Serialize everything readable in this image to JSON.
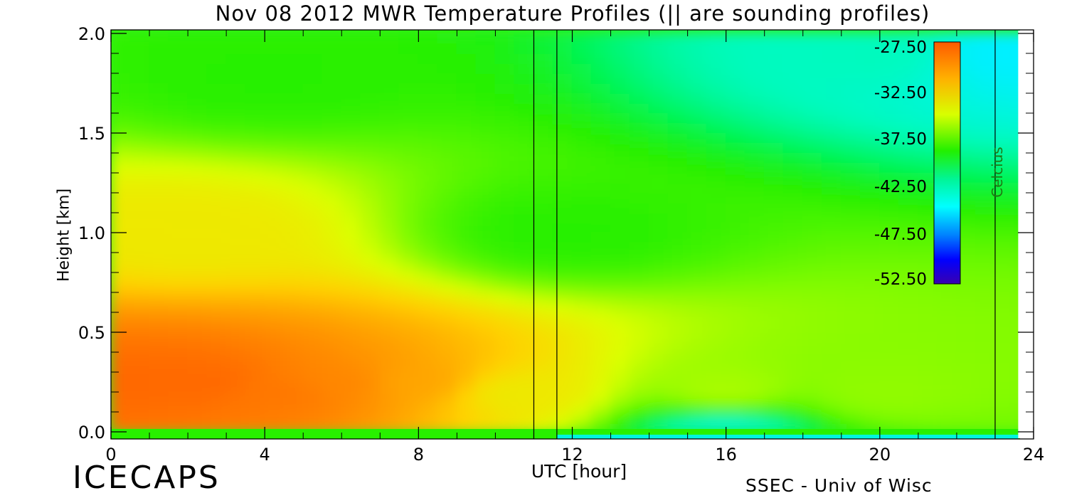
{
  "title": "Nov 08 2012 MWR Temperature Profiles (|| are sounding profiles)",
  "footer": {
    "left_logo": "ICECAPS",
    "right_credit": "SSEC - Univ of Wisc"
  },
  "colorbar": {
    "label": "Celcius",
    "tick_labels": [
      "-27.50",
      "-32.50",
      "-37.50",
      "-42.50",
      "-47.50",
      "-52.50"
    ]
  },
  "chart_data": {
    "type": "heatmap",
    "title": "Nov 08 2012 MWR Temperature Profiles (|| are sounding profiles)",
    "xlabel": "UTC [hour]",
    "ylabel": "Height [km]",
    "xlim": [
      0,
      24
    ],
    "ylim": [
      -0.04,
      2.0
    ],
    "x_ticks": [
      "0",
      "4",
      "8",
      "12",
      "16",
      "20",
      "24"
    ],
    "y_ticks": [
      "0.0",
      "0.5",
      "1.0",
      "1.5",
      "2.0"
    ],
    "sounding_times_utc": [
      11.0,
      11.6,
      23.0
    ],
    "data_coverage_end_utc": 23.6,
    "colorbar_range_c": [
      -52.5,
      -27.5
    ],
    "temperature_c_estimates": [
      {
        "utc": 0.5,
        "height_km": 0.25,
        "temp": -28.5
      },
      {
        "utc": 2.5,
        "height_km": 0.25,
        "temp": -28.5
      },
      {
        "utc": 4.5,
        "height_km": 0.2,
        "temp": -29
      },
      {
        "utc": 6,
        "height_km": 0.25,
        "temp": -29.5
      },
      {
        "utc": 8,
        "height_km": 0.25,
        "temp": -30.5
      },
      {
        "utc": 10.5,
        "height_km": 0.2,
        "temp": -33
      },
      {
        "utc": 16,
        "height_km": 0.2,
        "temp": -35
      },
      {
        "utc": 20,
        "height_km": 0.2,
        "temp": -35.5
      },
      {
        "utc": 2,
        "height_km": 1.0,
        "temp": -33
      },
      {
        "utc": 12,
        "height_km": 1.0,
        "temp": -38
      },
      {
        "utc": 4,
        "height_km": 1.8,
        "temp": -38
      },
      {
        "utc": 20,
        "height_km": 1.9,
        "temp": -42
      },
      {
        "utc": 23.3,
        "height_km": 1.9,
        "temp": -44
      },
      {
        "utc": 16,
        "height_km": 0.0,
        "temp": -43
      }
    ]
  }
}
